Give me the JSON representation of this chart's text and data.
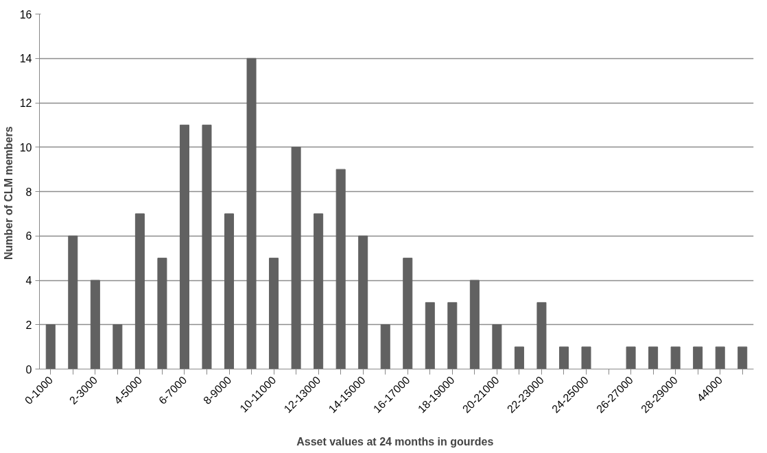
{
  "chart_data": {
    "type": "bar",
    "xlabel": "Asset  values at 24 months in gourdes",
    "ylabel": "Number of  CLM members",
    "categories": [
      "0-1000",
      null,
      "2-3000",
      null,
      "4-5000",
      null,
      "6-7000",
      null,
      "8-9000",
      null,
      "10-11000",
      null,
      "12-13000",
      null,
      "14-15000",
      null,
      "16-17000",
      null,
      "18-19000",
      null,
      "20-21000",
      null,
      "22-23000",
      null,
      "24-25000",
      null,
      "26-27000",
      null,
      "28-29000",
      null,
      "44000",
      null
    ],
    "values": [
      2,
      6,
      4,
      2,
      7,
      5,
      11,
      11,
      7,
      14,
      5,
      10,
      7,
      9,
      6,
      2,
      5,
      3,
      3,
      4,
      2,
      1,
      3,
      1,
      1,
      0,
      1,
      1,
      1,
      1,
      1,
      1
    ],
    "color": "#616161",
    "ylim": [
      0,
      16
    ],
    "yticks": [
      0,
      2,
      4,
      6,
      8,
      10,
      12,
      14,
      16
    ],
    "grid": "y"
  }
}
